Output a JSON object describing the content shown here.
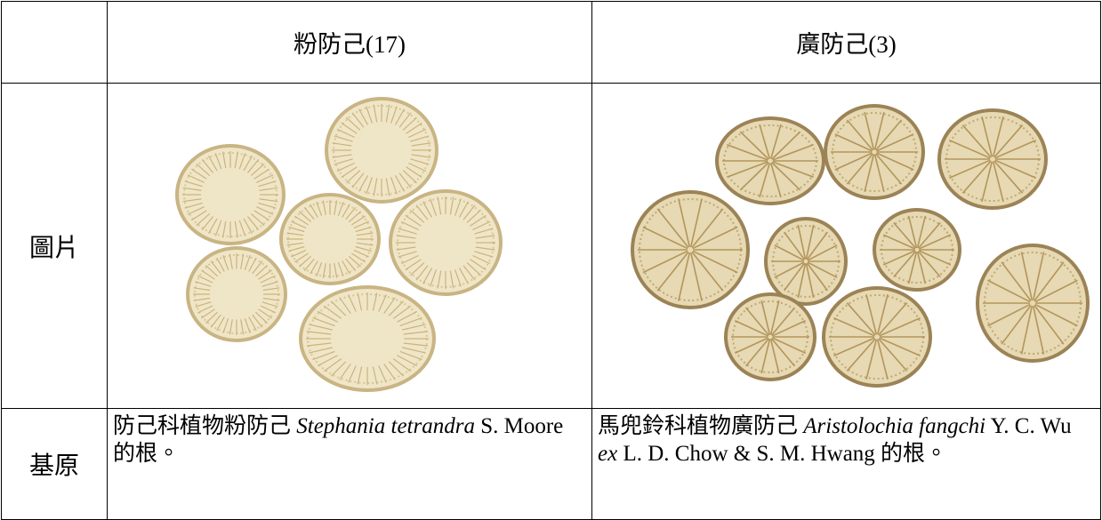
{
  "table": {
    "header": [
      "粉防己(17)",
      "廣防己(3)"
    ],
    "rows": [
      {
        "label": "圖片"
      },
      {
        "label": "基原",
        "cells": [
          [
            {
              "text": "防己科植物粉防己 ",
              "italic": false
            },
            {
              "text": "Stephania tetrandra",
              "italic": true
            },
            {
              "text": " S. Moore 的根。",
              "italic": false
            }
          ],
          [
            {
              "text": "馬兜鈴科植物廣防己 ",
              "italic": false
            },
            {
              "text": "Aristolochia fangchi",
              "italic": true
            },
            {
              "text": " Y. C. Wu ",
              "italic": false
            },
            {
              "text": "ex",
              "italic": true
            },
            {
              "text": " L. D. Chow & S. M. Hwang 的根。",
              "italic": false
            }
          ]
        ]
      }
    ]
  }
}
